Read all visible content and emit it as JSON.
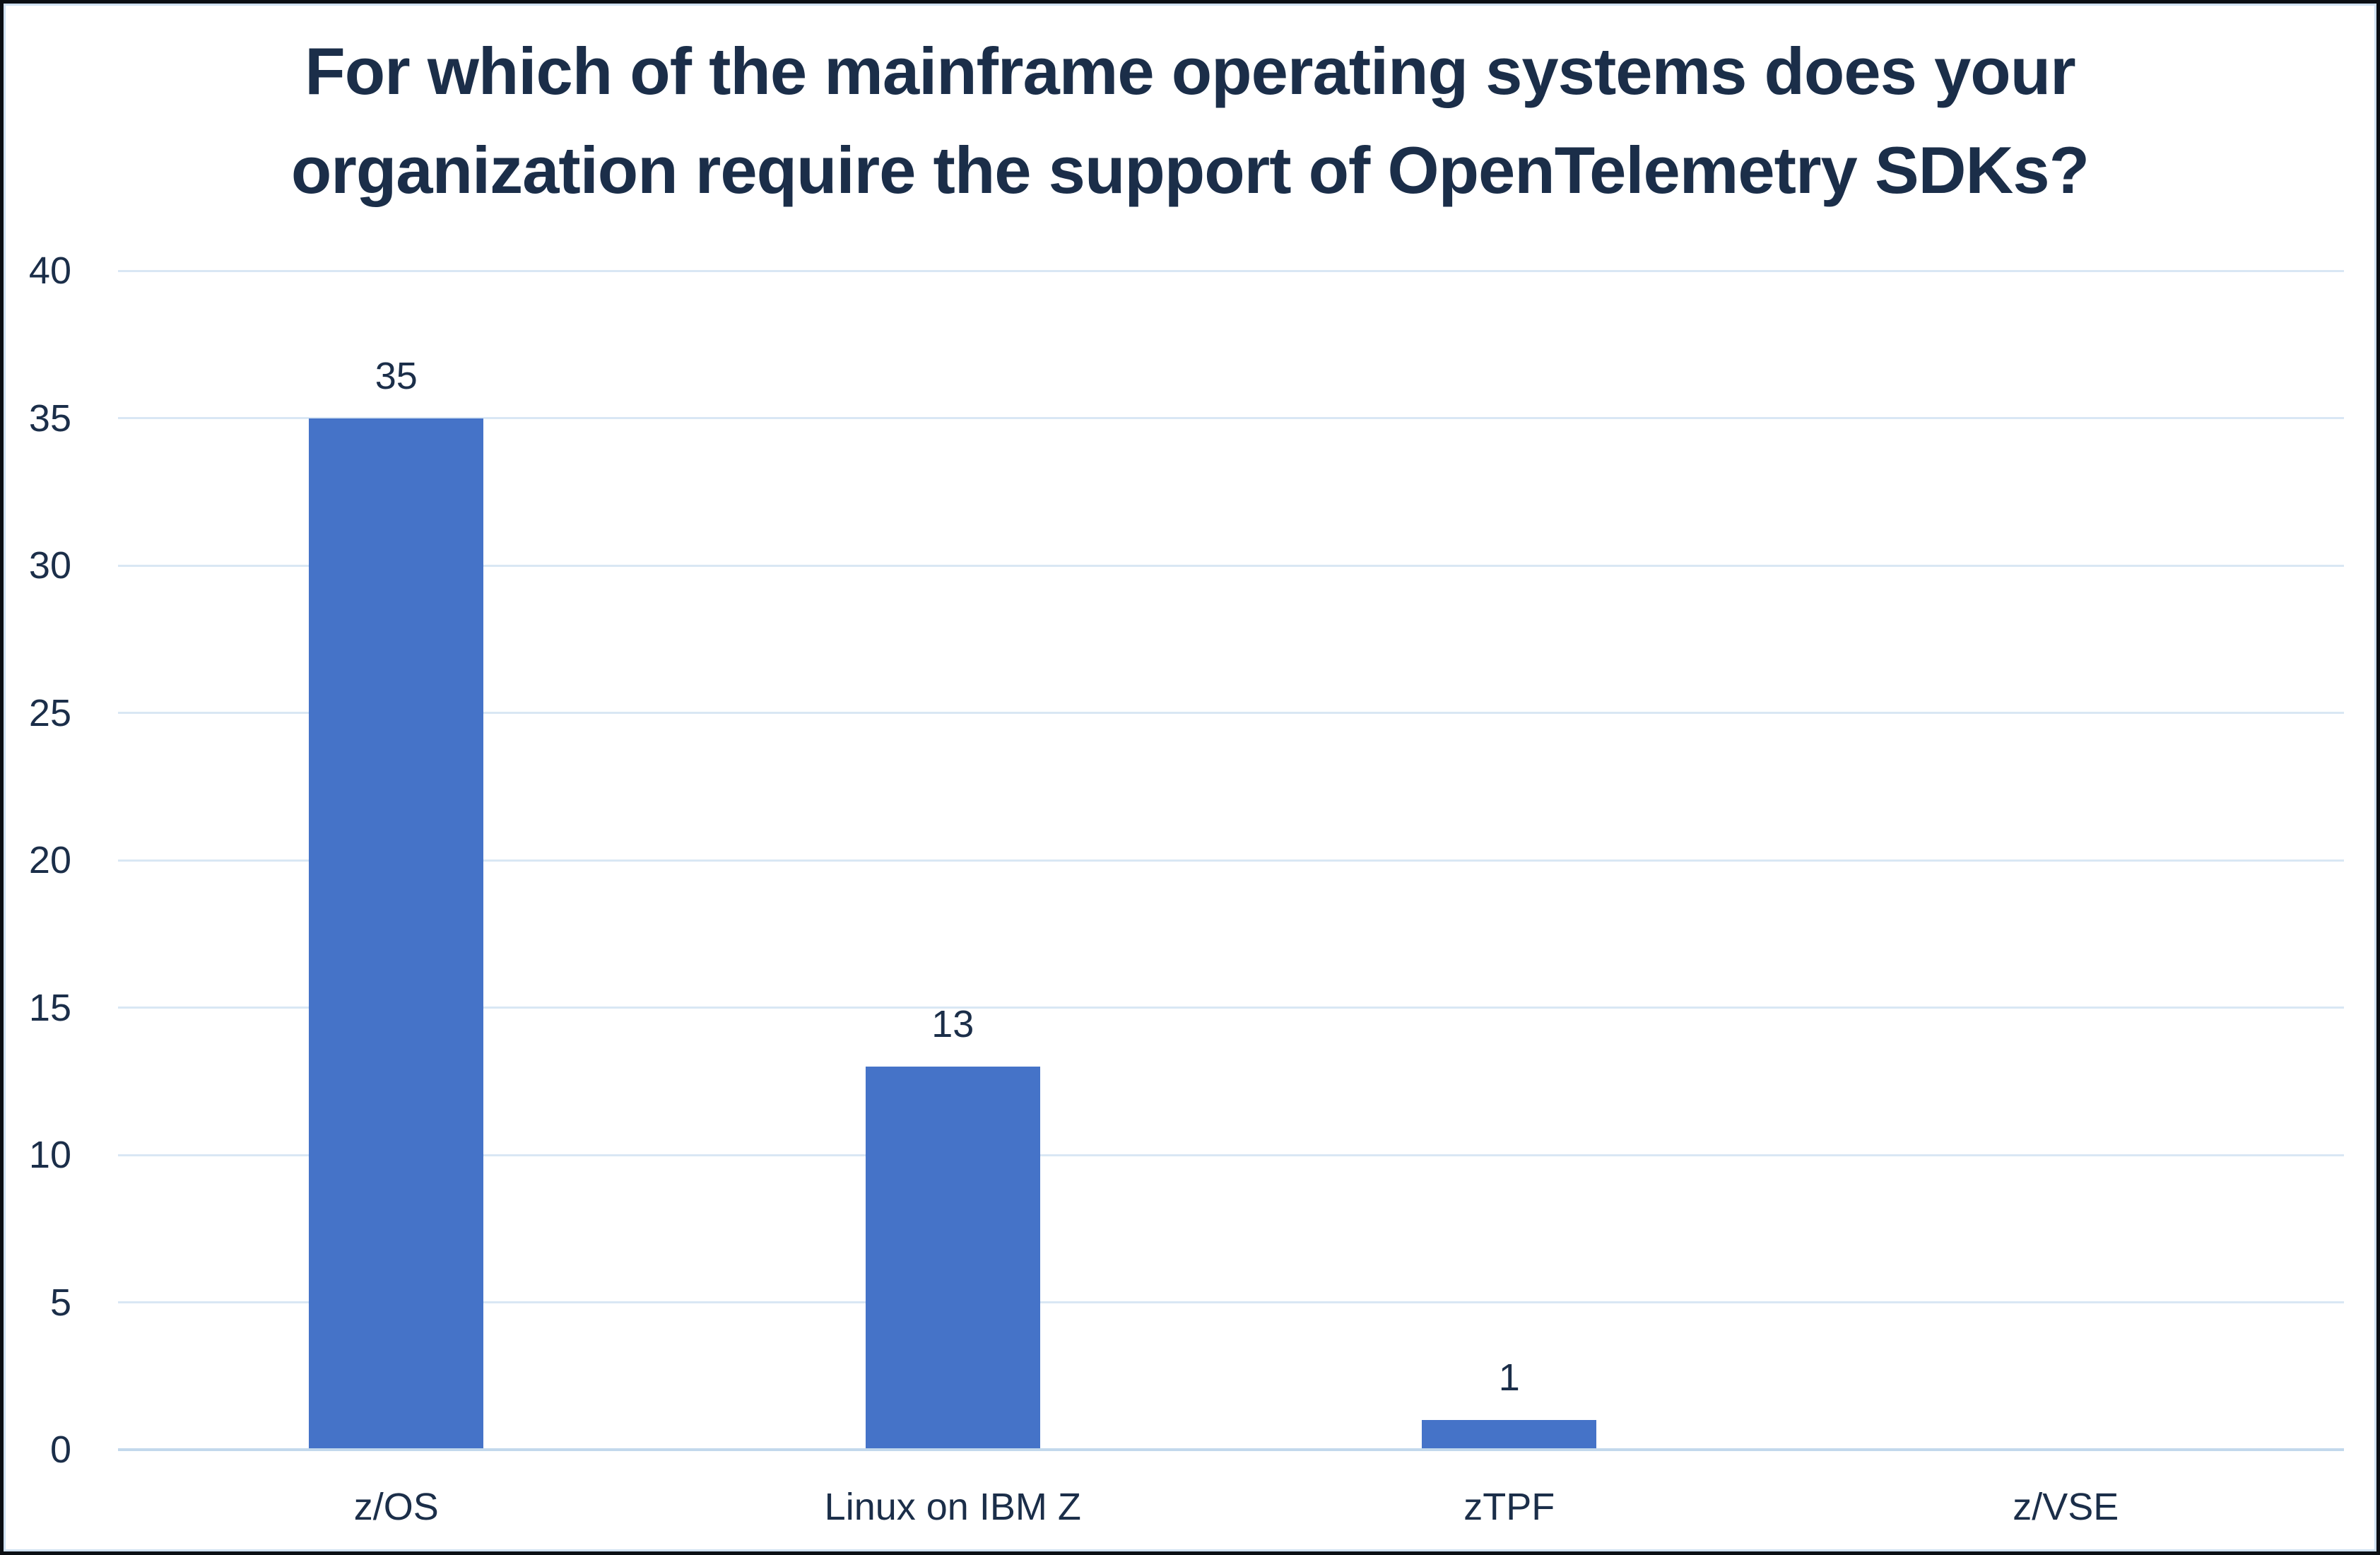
{
  "chart_data": {
    "type": "bar",
    "title_lines": [
      "For which of the mainframe operating systems does your",
      "organization require the support of OpenTelemetry SDKs?"
    ],
    "title": "For which of the mainframe operating systems does your organization require the support of OpenTelemetry SDKs?",
    "categories": [
      "z/OS",
      "Linux on IBM Z",
      "zTPF",
      "z/VSE"
    ],
    "values": [
      35,
      13,
      1,
      0
    ],
    "value_labels": [
      "35",
      "13",
      "1",
      ""
    ],
    "xlabel": "",
    "ylabel": "",
    "ylim": [
      0,
      40
    ],
    "yticks": [
      0,
      5,
      10,
      15,
      20,
      25,
      30,
      35,
      40
    ],
    "grid": true,
    "legend_position": "none",
    "colors": {
      "bar": "#4573c8",
      "text": "#1b2e49",
      "gridline": "#d9e7f4",
      "axis_line": "#c2d8ec",
      "background": "#ffffff",
      "outer_border": "#0b0f14",
      "inner_border": "#cfe0f1"
    }
  }
}
